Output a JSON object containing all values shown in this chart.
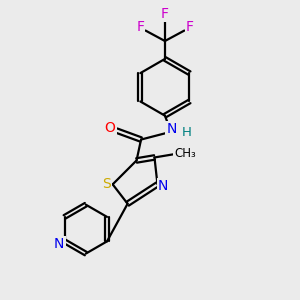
{
  "background_color": "#ebebeb",
  "atom_colors": {
    "C": "#000000",
    "N": "#0000ee",
    "O": "#ff0000",
    "S": "#ccaa00",
    "F": "#cc00cc",
    "H": "#008080"
  },
  "bond_lw": 1.6,
  "figsize": [
    3.0,
    3.0
  ],
  "dpi": 100
}
